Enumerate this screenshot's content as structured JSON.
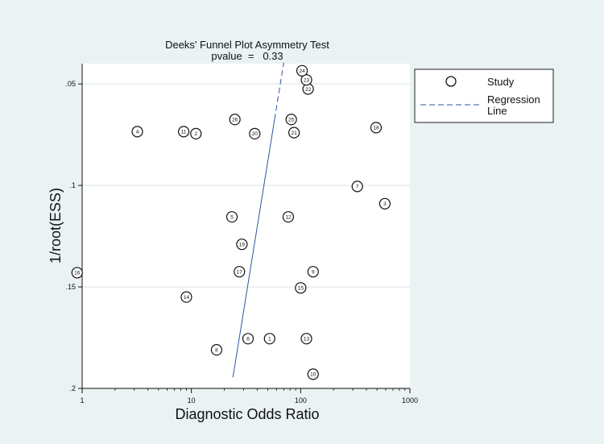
{
  "chart_data": {
    "type": "scatter",
    "title": "Deeks' Funnel Plot Asymmetry Test",
    "subtitle": "pvalue  =   0.33",
    "xlabel": "Diagnostic Odds Ratio",
    "ylabel": "1/root(ESS)",
    "x_scale": "log",
    "xlim": [
      1,
      1000
    ],
    "ylim": [
      0.2,
      0.04
    ],
    "x_ticks": [
      1,
      10,
      100,
      1000
    ],
    "x_tick_labels": [
      "1",
      "10",
      "100",
      "1000"
    ],
    "y_ticks": [
      0.05,
      0.1,
      0.15,
      0.2
    ],
    "y_tick_labels": [
      ".05",
      ".1",
      ".15",
      ".2"
    ],
    "grid": true,
    "legend_position": "right-top",
    "legend": [
      {
        "label": "Study",
        "marker": "circle"
      },
      {
        "label": "Regression\nLine",
        "marker": "dashed-line"
      }
    ],
    "regression_line": {
      "x": [
        24,
        70
      ],
      "y": [
        0.1945,
        0.0395
      ]
    },
    "series": [
      {
        "name": "Study",
        "points": [
          {
            "id": "1",
            "x": 52,
            "y": 0.1755
          },
          {
            "id": "2",
            "x": 11,
            "y": 0.0745
          },
          {
            "id": "3",
            "x": 590,
            "y": 0.109
          },
          {
            "id": "4",
            "x": 3.2,
            "y": 0.0735
          },
          {
            "id": "5",
            "x": 23.5,
            "y": 0.1155
          },
          {
            "id": "6",
            "x": 33,
            "y": 0.1755
          },
          {
            "id": "7",
            "x": 330,
            "y": 0.1005
          },
          {
            "id": "8",
            "x": 17,
            "y": 0.181
          },
          {
            "id": "9",
            "x": 130,
            "y": 0.1425
          },
          {
            "id": "10",
            "x": 130,
            "y": 0.193
          },
          {
            "id": "11",
            "x": 8.5,
            "y": 0.0735
          },
          {
            "id": "12",
            "x": 77,
            "y": 0.1155
          },
          {
            "id": "13",
            "x": 113,
            "y": 0.1755
          },
          {
            "id": "14",
            "x": 9,
            "y": 0.155
          },
          {
            "id": "15",
            "x": 100,
            "y": 0.1505
          },
          {
            "id": "16",
            "x": 0.9,
            "y": 0.143
          },
          {
            "id": "17",
            "x": 27.5,
            "y": 0.1425
          },
          {
            "id": "18",
            "x": 490,
            "y": 0.0715
          },
          {
            "id": "19",
            "x": 29,
            "y": 0.129
          },
          {
            "id": "20",
            "x": 38,
            "y": 0.0745
          },
          {
            "id": "21",
            "x": 87,
            "y": 0.074
          },
          {
            "id": "22",
            "x": 117,
            "y": 0.0525
          },
          {
            "id": "23",
            "x": 113,
            "y": 0.048
          },
          {
            "id": "24",
            "x": 103,
            "y": 0.0435
          },
          {
            "id": "25",
            "x": 82,
            "y": 0.0675
          },
          {
            "id": "26",
            "x": 25,
            "y": 0.0675
          }
        ]
      }
    ]
  }
}
